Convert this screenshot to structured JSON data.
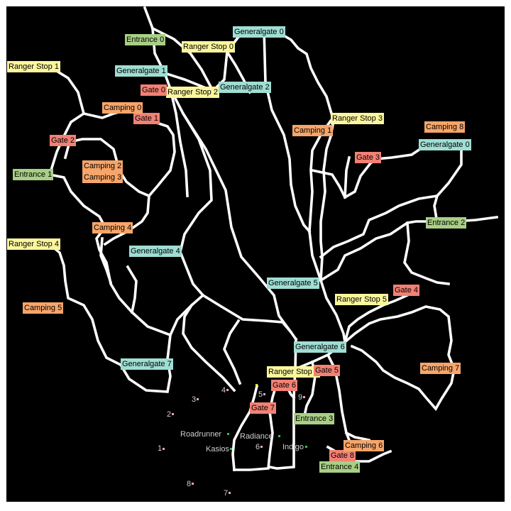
{
  "colors": {
    "background": "#000000",
    "road": "#ffffff",
    "gate": "#f28174",
    "camping": "#f7a56a",
    "ranger_stop": "#fbf69c",
    "generalgate": "#9fded3",
    "entrance": "#a9cf86",
    "site_label": "#cfcfcf",
    "site_dot_pink": "#e8a7b5",
    "site_dot_green": "#2ec25a",
    "site_dot_yellow": "#ffff00"
  },
  "map_labels": {
    "entrance0": "Entrance 0",
    "entrance1": "Entrance 1",
    "entrance2": "Entrance 2",
    "entrance3": "Entrance 3",
    "entrance4": "Entrance 4",
    "ranger0": "Ranger Stop 0",
    "ranger1": "Ranger Stop 1",
    "ranger2": "Ranger Stop 2",
    "ranger3": "Ranger Stop 3",
    "ranger4": "Ranger Stop 4",
    "ranger5": "Ranger Stop 5",
    "ranger6": "Ranger Stop 6",
    "general0": "Generalgate 0",
    "general0b": "Generalgate 0",
    "general1": "Generalgate 1",
    "general2": "Generalgate 2",
    "general4": "Generalgate 4",
    "general5": "Generalgate 5",
    "general6": "Generalgate 6",
    "general7": "Generalgate 7",
    "gate0": "Gate 0",
    "gate1": "Gate 1",
    "gate2": "Gate 2",
    "gate3": "Gate 3",
    "gate4": "Gate 4",
    "gate5": "Gate 5",
    "gate6": "Gate 6",
    "gate7": "Gate 7",
    "gate8": "Gate 8",
    "camping0": "Camping 0",
    "camping1": "Camping 1",
    "camping2": "Camping 2",
    "camping3": "Camping 3",
    "camping4": "Camping 4",
    "camping5": "Camping 5",
    "camping6": "Camping 6",
    "camping7": "Camping 7",
    "camping8": "Camping 8"
  },
  "sites": {
    "s1": "1",
    "s2": "2",
    "s3": "3",
    "s4": "4",
    "s5": "5",
    "s6": "6",
    "s7": "7",
    "s8": "8",
    "s9": "9",
    "roadrunner": "Roadrunner",
    "radiance": "Radiance",
    "kasios": "Kasios",
    "indigo": "Indigo"
  }
}
